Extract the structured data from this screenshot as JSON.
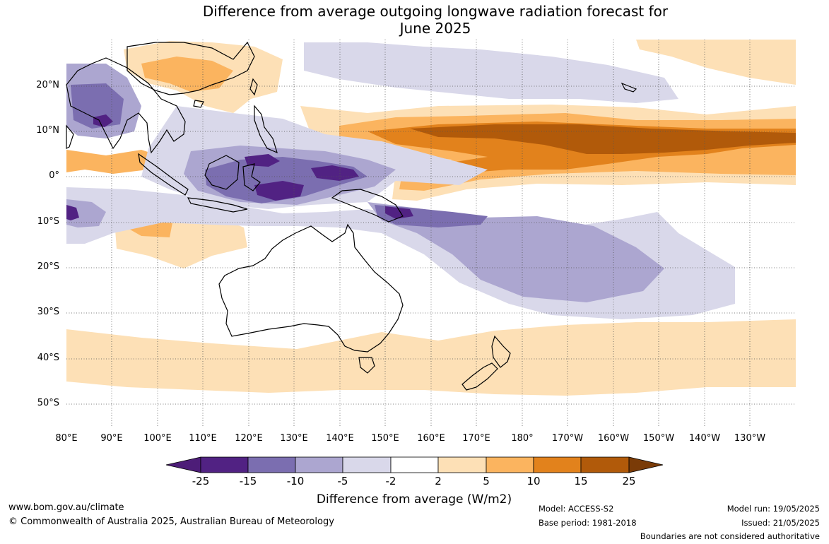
{
  "title_line1": "Difference from average outgoing longwave radiation forecast for",
  "title_line2": "June 2025",
  "lat_labels": [
    "20°N",
    "10°N",
    "0°",
    "10°S",
    "20°S",
    "30°S",
    "40°S",
    "50°S"
  ],
  "lon_labels": [
    "80°E",
    "90°E",
    "100°E",
    "110°E",
    "120°E",
    "130°E",
    "140°E",
    "150°E",
    "160°E",
    "170°E",
    "180°",
    "170°W",
    "160°W",
    "150°W",
    "140°W",
    "130°W"
  ],
  "colorbar": {
    "ticks": [
      "-25",
      "-15",
      "-10",
      "-5",
      "-2",
      "2",
      "5",
      "10",
      "15",
      "25"
    ],
    "colors": [
      "#4d1d78",
      "#512283",
      "#7b6eb0",
      "#aca6d0",
      "#d9d8ea",
      "#ffffff",
      "#fde0b6",
      "#fbb45f",
      "#e2821c",
      "#b15a0a",
      "#7a3b07"
    ],
    "label": "Difference from average (W/m2)"
  },
  "footer": {
    "website": "www.bom.gov.au/climate",
    "copyright": "© Commonwealth of Australia 2025, Australian Bureau of Meteorology",
    "model": "Model: ACCESS-S2",
    "base_period": "Base period: 1981-2018",
    "model_run": "Model run: 19/05/2025",
    "issued": "Issued: 21/05/2025",
    "disclaimer": "Boundaries are not considered authoritative"
  }
}
